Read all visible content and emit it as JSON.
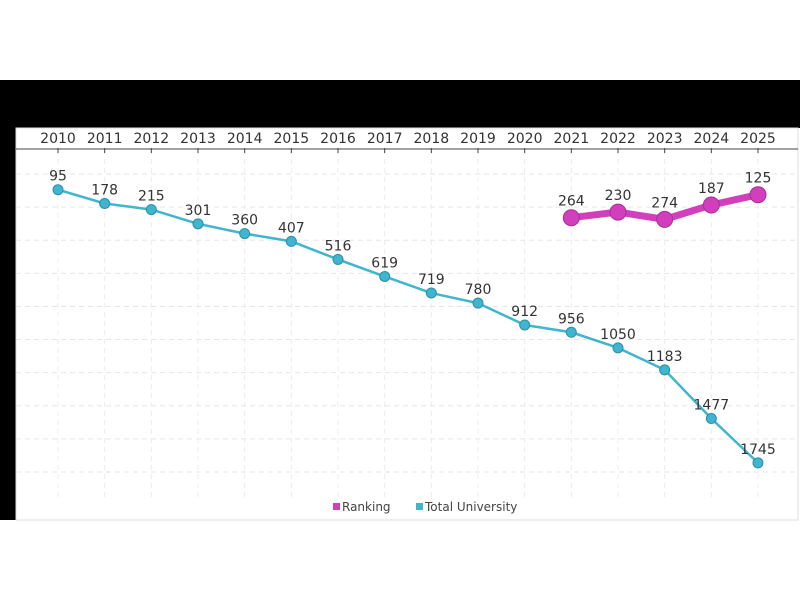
{
  "chart_data": {
    "type": "line",
    "title": "",
    "xlabel": "",
    "ylabel": "",
    "categories": [
      "2010",
      "2011",
      "2012",
      "2013",
      "2014",
      "2015",
      "2016",
      "2017",
      "2018",
      "2019",
      "2020",
      "2021",
      "2022",
      "2023",
      "2024",
      "2025"
    ],
    "ylim": [
      0,
      1800
    ],
    "y_reversed": true,
    "grid": true,
    "legend_position": "bottom",
    "series": [
      {
        "name": "Ranking",
        "color": "#d13fbd",
        "values": [
          null,
          null,
          null,
          null,
          null,
          null,
          null,
          null,
          null,
          null,
          null,
          264,
          230,
          274,
          187,
          125
        ]
      },
      {
        "name": "Total University",
        "color": "#3fb5cf",
        "values": [
          95,
          178,
          215,
          301,
          360,
          407,
          516,
          619,
          719,
          780,
          912,
          956,
          1050,
          1183,
          1477,
          1745
        ]
      }
    ]
  }
}
